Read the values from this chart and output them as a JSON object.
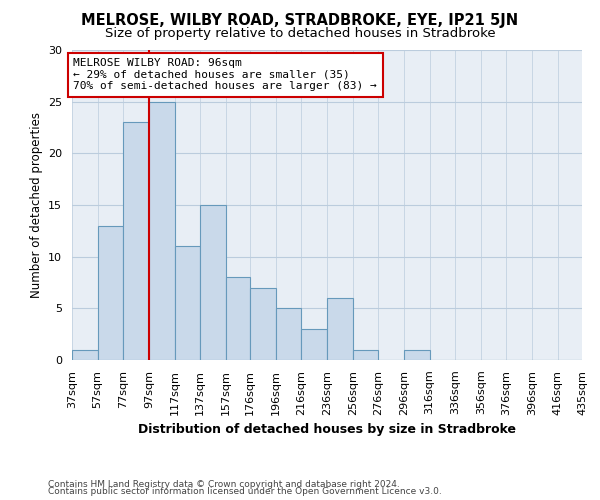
{
  "title": "MELROSE, WILBY ROAD, STRADBROKE, EYE, IP21 5JN",
  "subtitle": "Size of property relative to detached houses in Stradbroke",
  "xlabel": "Distribution of detached houses by size in Stradbroke",
  "ylabel": "Number of detached properties",
  "bar_values": [
    1,
    13,
    23,
    25,
    11,
    15,
    8,
    7,
    5,
    3,
    6,
    1,
    0,
    1,
    0,
    0,
    0,
    0,
    0,
    0
  ],
  "bin_edges": [
    37,
    57,
    77,
    97,
    117,
    137,
    157,
    176,
    196,
    216,
    236,
    256,
    276,
    296,
    316,
    336,
    356,
    376,
    396,
    416,
    435
  ],
  "bin_labels": [
    "37sqm",
    "57sqm",
    "77sqm",
    "97sqm",
    "117sqm",
    "137sqm",
    "157sqm",
    "176sqm",
    "196sqm",
    "216sqm",
    "236sqm",
    "256sqm",
    "276sqm",
    "296sqm",
    "316sqm",
    "336sqm",
    "356sqm",
    "376sqm",
    "396sqm",
    "416sqm",
    "435sqm"
  ],
  "bar_color": "#c9d9ea",
  "bar_edge_color": "#6699bb",
  "vline_x": 97,
  "vline_color": "#cc0000",
  "annotation_label": "MELROSE WILBY ROAD: 96sqm",
  "annotation_line1": "← 29% of detached houses are smaller (35)",
  "annotation_line2": "70% of semi-detached houses are larger (83) →",
  "annotation_box_edge_color": "#cc0000",
  "annotation_box_face_color": "#ffffff",
  "ylim": [
    0,
    30
  ],
  "yticks": [
    0,
    5,
    10,
    15,
    20,
    25,
    30
  ],
  "grid_color": "#bbccdd",
  "bg_color": "#e8eef5",
  "footer1": "Contains HM Land Registry data © Crown copyright and database right 2024.",
  "footer2": "Contains public sector information licensed under the Open Government Licence v3.0.",
  "title_fontsize": 10.5,
  "subtitle_fontsize": 9.5,
  "xlabel_fontsize": 9,
  "ylabel_fontsize": 8.5,
  "tick_fontsize": 8,
  "annotation_fontsize": 8,
  "footer_fontsize": 6.5
}
